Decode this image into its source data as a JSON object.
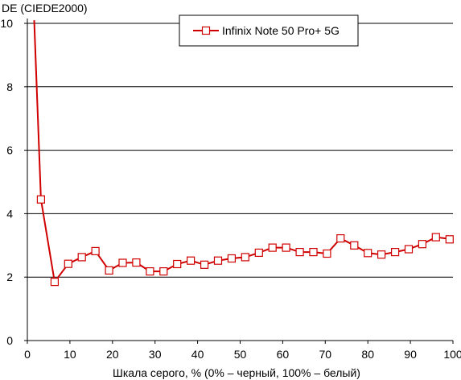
{
  "chart_data": {
    "type": "line",
    "ylabel": "DE (CIEDE2000)",
    "xlabel": "Шкала серого, % (0% – черный, 100% – белый)",
    "xlim": [
      0,
      100
    ],
    "ylim": [
      0,
      10
    ],
    "x_ticks": [
      "0",
      "10",
      "20",
      "30",
      "40",
      "50",
      "60",
      "70",
      "80",
      "90",
      "100"
    ],
    "y_ticks": [
      "0",
      "2",
      "4",
      "6",
      "8",
      "10"
    ],
    "grid": "horizontal",
    "legend_position": "top-center",
    "colors": {
      "series": "#d00000",
      "grid": "#000000",
      "axis": "#000000"
    },
    "series": [
      {
        "name": "Infinix Note 50 Pro+ 5G",
        "line_x": [
          1.6,
          3.2,
          6.4,
          9.6,
          12.8,
          16.0,
          19.2,
          22.4,
          25.6,
          28.8,
          32.0,
          35.2,
          38.4,
          41.6,
          44.8,
          48.0,
          51.2,
          54.4,
          57.6,
          60.8,
          64.0,
          67.2,
          70.4,
          73.6,
          76.8,
          80.0,
          83.2,
          86.4,
          89.6,
          92.8,
          96.0,
          100.0
        ],
        "line_y": [
          10.1,
          4.45,
          1.85,
          2.42,
          2.63,
          2.82,
          2.21,
          2.45,
          2.46,
          2.18,
          2.18,
          2.41,
          2.52,
          2.39,
          2.52,
          2.59,
          2.63,
          2.77,
          2.93,
          2.93,
          2.79,
          2.79,
          2.74,
          3.22,
          3.0,
          2.76,
          2.71,
          2.79,
          2.88,
          3.04,
          3.26,
          3.19
        ],
        "marker_x": [
          3.2,
          6.4,
          9.6,
          12.8,
          16.0,
          19.2,
          22.4,
          25.6,
          28.8,
          32.0,
          35.2,
          38.4,
          41.6,
          44.8,
          48.0,
          51.2,
          54.4,
          57.6,
          60.8,
          64.0,
          67.2,
          70.4,
          73.6,
          76.8,
          80.0,
          83.2,
          86.4,
          89.6,
          92.8,
          96.0,
          99.2
        ],
        "marker_y": [
          4.45,
          1.85,
          2.42,
          2.63,
          2.82,
          2.21,
          2.45,
          2.46,
          2.18,
          2.18,
          2.41,
          2.52,
          2.39,
          2.52,
          2.59,
          2.63,
          2.77,
          2.93,
          2.93,
          2.79,
          2.79,
          2.74,
          3.22,
          3.0,
          2.76,
          2.71,
          2.79,
          2.88,
          3.04,
          3.26,
          3.19
        ]
      }
    ]
  }
}
